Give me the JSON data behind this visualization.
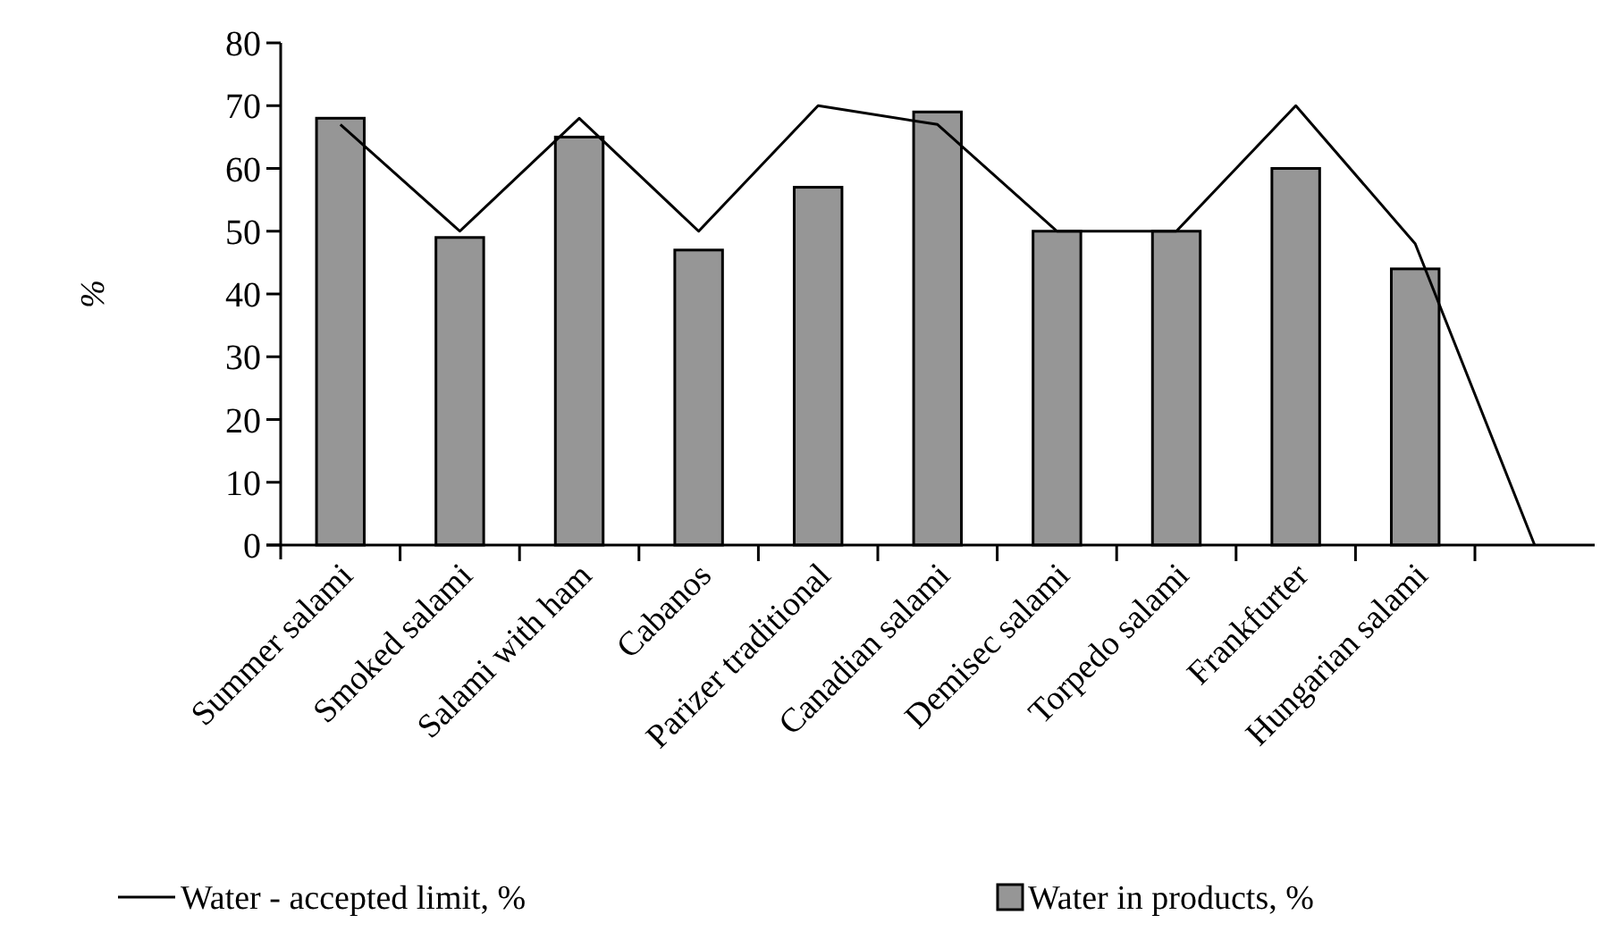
{
  "chart_data": {
    "type": "bar",
    "ylabel": "%",
    "categories": [
      "Summer salami",
      "Smoked salami",
      "Salami with ham",
      "Cabanos",
      "Parizer traditional",
      "Canadian salami",
      "Demisec salami",
      "Torpedo salami",
      "Frankfurter",
      "Hungarian salami",
      null
    ],
    "series": [
      {
        "name": "Water - accepted limit, %",
        "type": "line",
        "color": "#000000",
        "values": [
          67,
          50,
          68,
          50,
          70,
          67,
          50,
          50,
          70,
          48,
          0
        ]
      },
      {
        "name": "Water in products, %",
        "color": "#969696",
        "values": [
          68,
          49,
          65,
          47,
          57,
          69,
          50,
          50,
          60,
          44,
          null
        ]
      }
    ],
    "ylim": [
      0,
      80
    ],
    "yticks": [
      0,
      10,
      20,
      30,
      40,
      50,
      60,
      70,
      80
    ],
    "grid": false,
    "legend": "bottom",
    "marker": "none",
    "line_style": "solid"
  }
}
